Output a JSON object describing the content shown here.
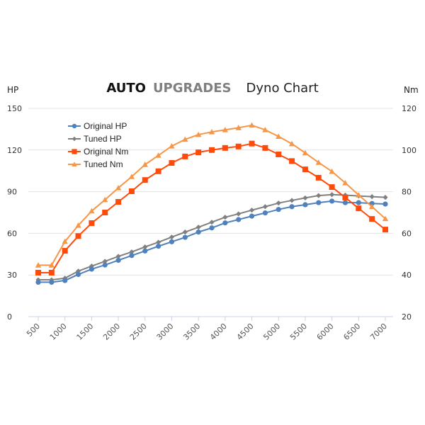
{
  "title": {
    "brand_part1": "AUTO",
    "brand_part2": "UPGRADES",
    "subtitle": "Dyno Chart"
  },
  "chart_data": {
    "type": "line",
    "title": "AUTO UPGRADES Dyno Chart",
    "xlabel": "",
    "ylabel_left": "HP",
    "ylabel_right": "Nm",
    "x": [
      500,
      750,
      1000,
      1250,
      1500,
      1750,
      2000,
      2250,
      2500,
      2750,
      3000,
      3250,
      3500,
      3750,
      4000,
      4250,
      4500,
      4750,
      5000,
      5250,
      5500,
      5750,
      6000,
      6250,
      6500,
      6750,
      7000
    ],
    "x_ticks": [
      "500",
      "1000",
      "1500",
      "2000",
      "2500",
      "3000",
      "3500",
      "4000",
      "4500",
      "5000",
      "5500",
      "6000",
      "6500",
      "7000"
    ],
    "y_left": {
      "range": [
        0,
        150
      ],
      "ticks": [
        "0",
        "30",
        "60",
        "90",
        "120",
        "150"
      ]
    },
    "y_right": {
      "range": [
        20,
        120
      ],
      "ticks": [
        "20",
        "40",
        "60",
        "80",
        "100",
        "120"
      ]
    },
    "grid": true,
    "legend_position": "top-left",
    "series": [
      {
        "name": "Original HP",
        "axis": "left",
        "color": "#4f81bd",
        "marker": "circle",
        "values": [
          24.8,
          24.8,
          26.0,
          30.4,
          34.2,
          37.2,
          40.6,
          44.0,
          47.3,
          50.7,
          53.9,
          57.1,
          60.9,
          63.9,
          67.5,
          69.9,
          72.4,
          74.7,
          77.2,
          79.2,
          80.6,
          82.1,
          83.2,
          82.1,
          82.1,
          81.5,
          81.1
        ]
      },
      {
        "name": "Tuned HP",
        "axis": "left",
        "color": "#808080",
        "marker": "diamond",
        "values": [
          26.5,
          26.5,
          27.7,
          32.8,
          36.4,
          39.8,
          43.4,
          46.6,
          50.2,
          53.6,
          57.3,
          60.9,
          64.4,
          68.0,
          71.6,
          74.0,
          76.7,
          79.2,
          81.8,
          83.7,
          85.5,
          87.2,
          87.9,
          87.5,
          86.9,
          86.4,
          85.9
        ]
      },
      {
        "name": "Original Nm",
        "axis": "right",
        "color": "#ff4a0a",
        "marker": "square",
        "values": [
          41.1,
          41.1,
          51.6,
          58.7,
          64.9,
          70.0,
          75.1,
          80.2,
          85.6,
          89.8,
          93.8,
          96.9,
          98.9,
          100.0,
          101.0,
          101.7,
          103.1,
          101.0,
          97.9,
          94.7,
          90.7,
          86.7,
          82.2,
          77.2,
          72.0,
          66.9,
          61.8
        ]
      },
      {
        "name": "Tuned Nm",
        "axis": "right",
        "color": "#f79646",
        "marker": "triangle",
        "values": [
          44.7,
          44.7,
          56.1,
          63.8,
          70.7,
          76.1,
          81.8,
          87.2,
          93.0,
          97.4,
          101.9,
          105.1,
          107.4,
          108.7,
          109.7,
          110.7,
          111.9,
          109.7,
          106.5,
          103.0,
          98.6,
          94.0,
          89.7,
          84.2,
          78.4,
          72.8,
          67.0
        ]
      }
    ]
  }
}
